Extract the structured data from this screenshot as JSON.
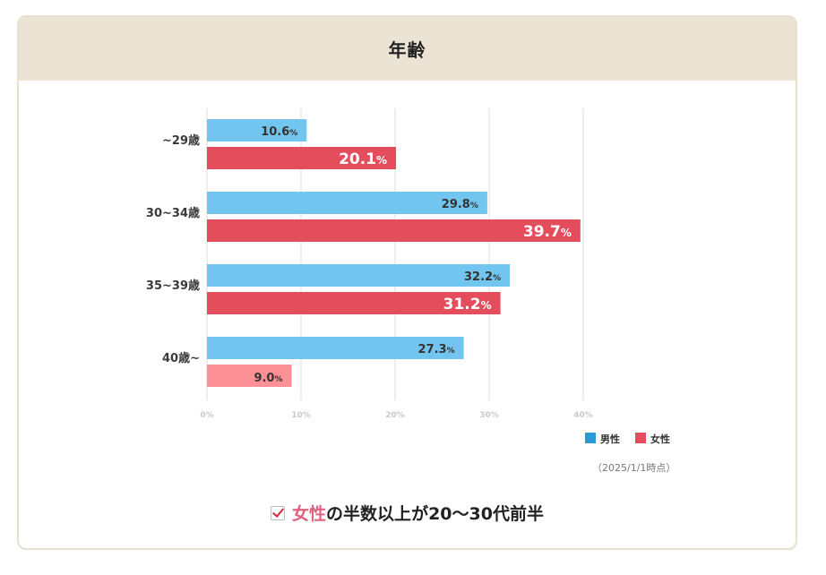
{
  "header": {
    "title": "年齢"
  },
  "chart_data": {
    "type": "bar",
    "orientation": "horizontal",
    "categories": [
      "~29歳",
      "30~34歳",
      "35~39歳",
      "40歳~"
    ],
    "series": [
      {
        "name": "男性",
        "values": [
          10.6,
          29.8,
          32.2,
          27.3
        ]
      },
      {
        "name": "女性",
        "values": [
          20.1,
          39.7,
          31.2,
          9.0
        ]
      }
    ],
    "value_labels": {
      "男性": [
        "10.6",
        "29.8",
        "32.2",
        "27.3"
      ],
      "女性": [
        "20.1",
        "39.7",
        "31.2",
        "9.0"
      ]
    },
    "unit": "%",
    "xlim": [
      0,
      40
    ],
    "xticks": [
      "0%",
      "10%",
      "20%",
      "30%",
      "40%"
    ],
    "grid": true,
    "legend_position": "bottom-right",
    "colors": {
      "male": "#72c5ee",
      "female_strong": "#e44d5b",
      "female_light": "#fd9096",
      "legend_male": "#2a9ad6",
      "legend_female": "#e44d5b"
    }
  },
  "note": {
    "date": "（2025/1/1時点）"
  },
  "summary": {
    "highlight": "女性",
    "text_1": "の半数以上",
    "text_2": "が20〜30代前半"
  }
}
